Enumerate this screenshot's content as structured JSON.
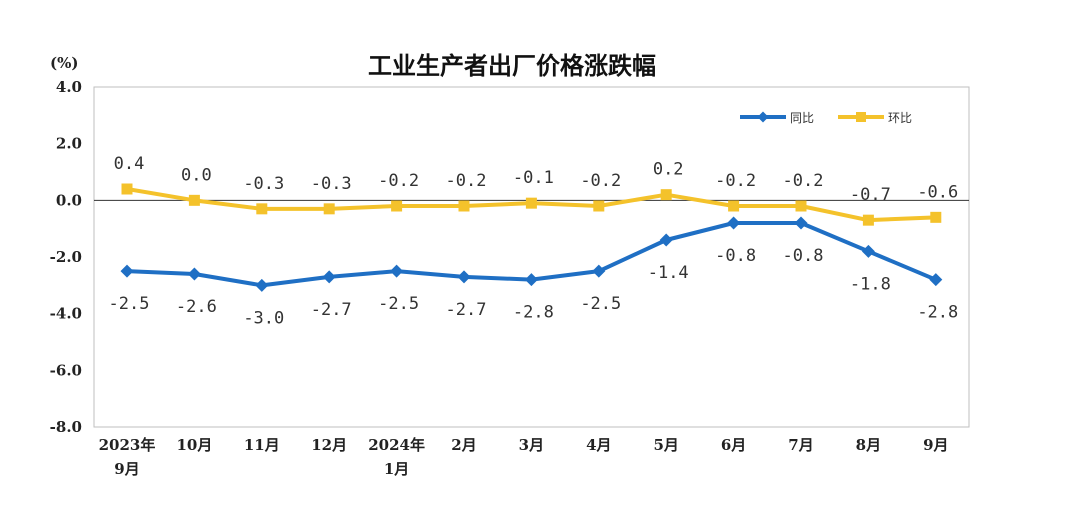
{
  "chart_data": {
    "type": "line",
    "title": "工业生产者出厂价格涨跌幅",
    "unit": "(%)",
    "ylim": [
      -8.0,
      4.0
    ],
    "yticks": [
      "4.0",
      "2.0",
      "0.0",
      "-2.0",
      "-4.0",
      "-6.0",
      "-8.0"
    ],
    "categories": [
      [
        "2023年",
        "9月"
      ],
      [
        "10月"
      ],
      [
        "11月"
      ],
      [
        "12月"
      ],
      [
        "2024年",
        "1月"
      ],
      [
        "2月"
      ],
      [
        "3月"
      ],
      [
        "4月"
      ],
      [
        "5月"
      ],
      [
        "6月"
      ],
      [
        "7月"
      ],
      [
        "8月"
      ],
      [
        "9月"
      ]
    ],
    "series": [
      {
        "name": "同比",
        "color": "#1f6fc4",
        "marker": "diamond",
        "values": [
          -2.5,
          -2.6,
          -3.0,
          -2.7,
          -2.5,
          -2.7,
          -2.8,
          -2.5,
          -1.4,
          -0.8,
          -0.8,
          -1.8,
          -2.8
        ],
        "labels": [
          "-2.5",
          "-2.6",
          "-3.0",
          "-2.7",
          "-2.5",
          "-2.7",
          "-2.8",
          "-2.5",
          "-1.4",
          "-0.8",
          "-0.8",
          "-1.8",
          "-2.8"
        ],
        "label_position": "below"
      },
      {
        "name": "环比",
        "color": "#f4c22b",
        "marker": "square",
        "values": [
          0.4,
          0.0,
          -0.3,
          -0.3,
          -0.2,
          -0.2,
          -0.1,
          -0.2,
          0.2,
          -0.2,
          -0.2,
          -0.7,
          -0.6
        ],
        "labels": [
          "0.4",
          "0.0",
          "-0.3",
          "-0.3",
          "-0.2",
          "-0.2",
          "-0.1",
          "-0.2",
          "0.2",
          "-0.2",
          "-0.2",
          "-0.7",
          "-0.6"
        ],
        "label_position": "above"
      }
    ],
    "legend_position": "top-right",
    "grid": false,
    "zero_line": true
  }
}
